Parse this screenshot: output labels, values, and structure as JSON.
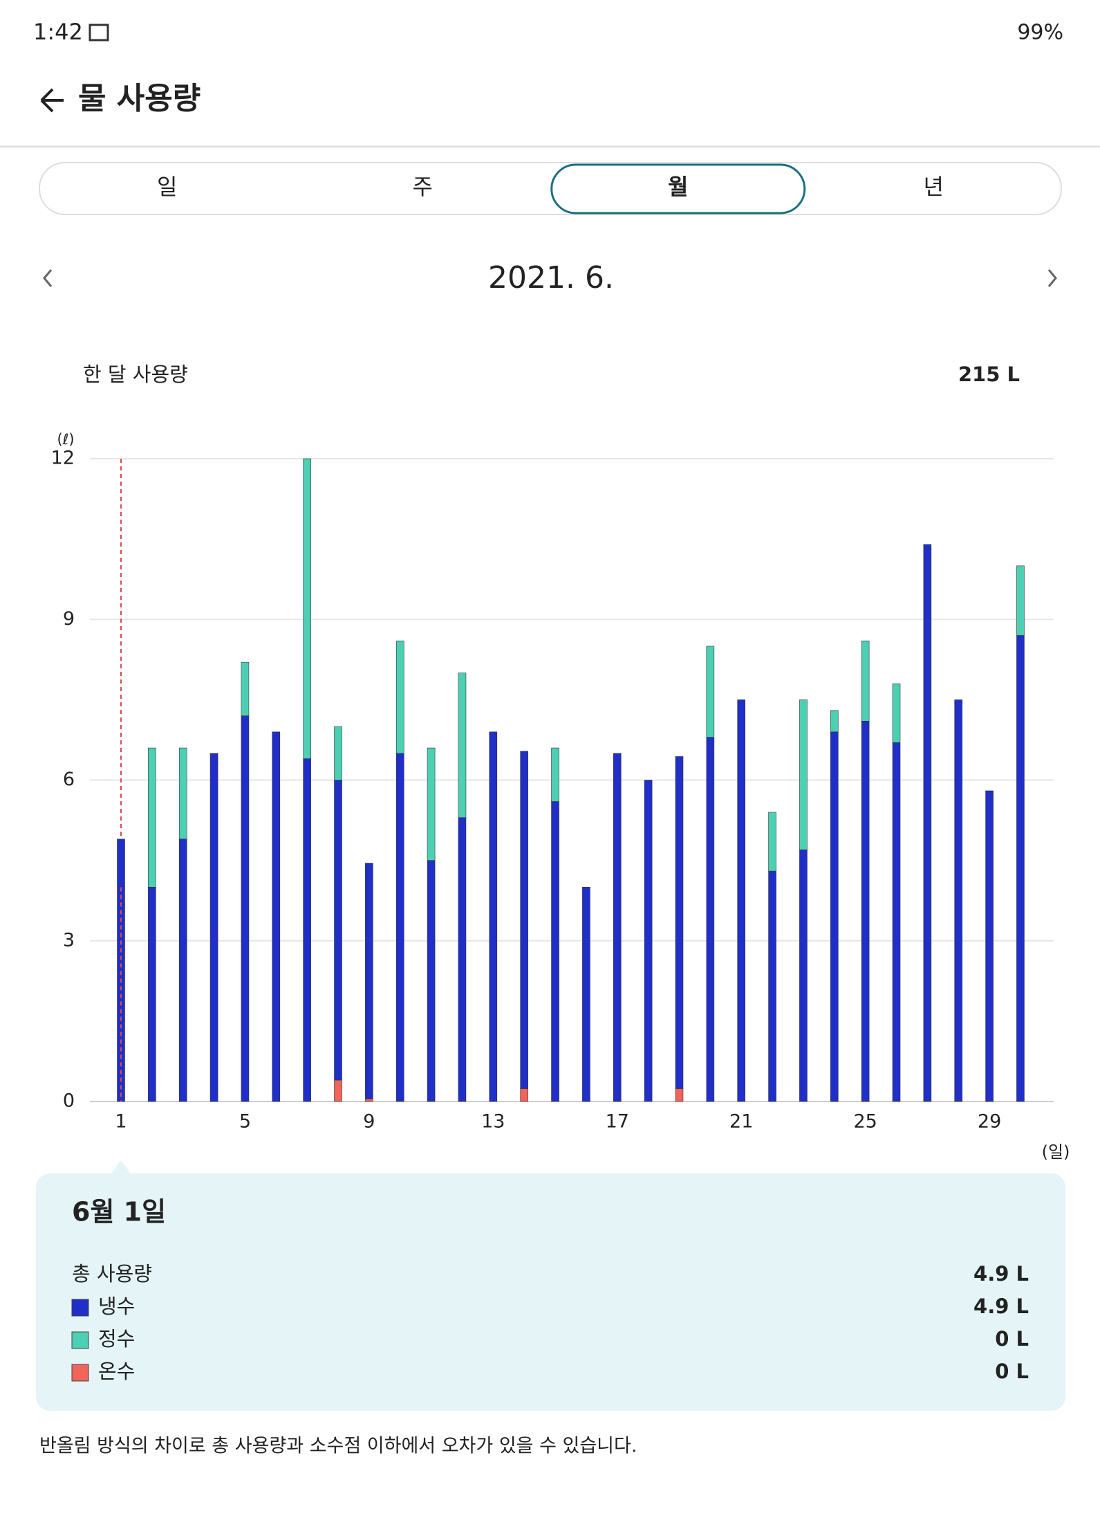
{
  "status_bar": {
    "time": "1:42",
    "battery": "99%"
  },
  "header": {
    "title": "물 사용량"
  },
  "tabs": {
    "items": [
      "일",
      "주",
      "월",
      "년"
    ],
    "selected": 2
  },
  "period": {
    "label": "2021. 6."
  },
  "summary": {
    "label": "한 달 사용량",
    "value": "215 L"
  },
  "chart_data": {
    "type": "stacked_bar",
    "y_unit": "(ℓ)",
    "x_unit": "(일)",
    "categories": [
      "1",
      null,
      null,
      null,
      "5",
      null,
      null,
      null,
      "9",
      null,
      null,
      null,
      "13",
      null,
      null,
      null,
      "17",
      null,
      null,
      null,
      "21",
      null,
      null,
      null,
      "25",
      null,
      null,
      null,
      "29",
      null
    ],
    "series": [
      {
        "name": "냉수",
        "color": "#1f2fc8",
        "values": [
          4.9,
          4.0,
          4.9,
          6.5,
          7.2,
          6.9,
          6.4,
          5.6,
          4.4,
          6.5,
          4.5,
          5.3,
          6.9,
          6.3,
          5.6,
          4.0,
          6.5,
          6.0,
          6.2,
          6.8,
          7.5,
          4.3,
          4.7,
          6.9,
          7.1,
          6.7,
          10.4,
          7.5,
          5.8,
          8.7
        ]
      },
      {
        "name": "정수",
        "color": "#4ccfb2",
        "values": [
          0,
          2.6,
          1.7,
          0,
          1.0,
          0,
          5.6,
          1.0,
          0,
          2.1,
          2.1,
          2.7,
          0,
          0,
          1.0,
          0,
          0,
          0,
          0,
          1.7,
          0,
          1.1,
          2.8,
          0.4,
          1.5,
          1.1,
          0,
          0,
          0,
          1.3
        ]
      },
      {
        "name": "온수",
        "color": "#f0645a",
        "values": [
          0,
          0,
          0,
          0,
          0,
          0,
          0,
          0.4,
          0.05,
          0,
          0,
          0,
          0,
          0.24,
          0,
          0,
          0,
          0,
          0.24,
          0,
          0,
          0,
          0,
          0,
          0,
          0,
          0,
          0,
          0,
          0
        ]
      }
    ],
    "ylim": [
      0,
      12
    ],
    "yticks": [
      0,
      3,
      6,
      9,
      12
    ],
    "grid": true,
    "selected_index": 0
  },
  "tooltip": {
    "title": "6월 1일",
    "total_label": "총 사용량",
    "total": "4.9 L",
    "values": [
      "4.9 L",
      "0 L",
      "0 L"
    ]
  },
  "footnote": "반올림 방식의 차이로 총 사용량과 소수점 이하에서 오차가 있을 수 있습니다."
}
